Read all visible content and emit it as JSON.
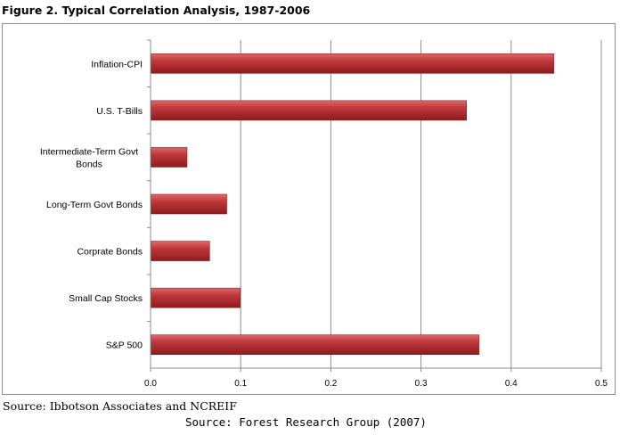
{
  "figure_title": "Figure 2.  Typical Correlation Analysis, 1987-2006",
  "source_line_1": "Source:  Ibbotson Associates and NCREIF",
  "source_line_2": "Source: Forest Research Group (2007)",
  "colors": {
    "bar": "#c0393b",
    "bar_dark": "#8e1b1d",
    "bar_light": "#dd6a6b",
    "grid": "#8c8c8c",
    "axis": "#8c8c8c"
  },
  "chart_data": {
    "type": "bar",
    "orientation": "horizontal",
    "categories": [
      "Inflation-CPI",
      "U.S. T-Bills",
      "Intermediate-Term Govt Bonds",
      "Long-Term Govt Bonds",
      "Corprate Bonds",
      "Small Cap Stocks",
      "S&P 500"
    ],
    "category_label_lines": [
      [
        "Inflation-CPI"
      ],
      [
        "U.S. T-Bills"
      ],
      [
        "Intermediate-Term Govt",
        "Bonds"
      ],
      [
        "Long-Term Govt Bonds"
      ],
      [
        "Corprate Bonds"
      ],
      [
        "Small Cap Stocks"
      ],
      [
        "S&P 500"
      ]
    ],
    "values": [
      0.447,
      0.35,
      0.04,
      0.084,
      0.065,
      0.099,
      0.364
    ],
    "xlim": [
      0,
      0.5
    ],
    "xticks": [
      0,
      0.1,
      0.2,
      0.3,
      0.4,
      0.5
    ],
    "xtick_labels": [
      "0.0",
      "0.1",
      "0.2",
      "0.3",
      "0.4",
      "0.5"
    ],
    "grid": "vertical",
    "legend": "none",
    "xlabel": "",
    "ylabel": ""
  }
}
